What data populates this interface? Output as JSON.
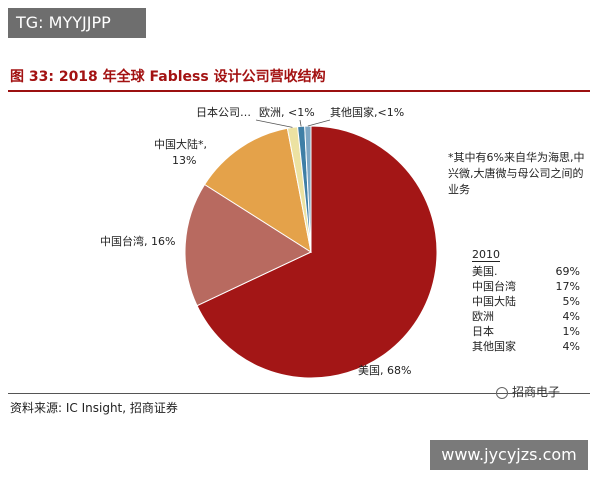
{
  "watermark": "TG: MYYJJPP",
  "figure_title": "图 33:  2018 年全球 Fabless 设计公司营收结构",
  "source": "资料来源:  IC Insight, 招商证券",
  "brand": "招商电子",
  "site": "www.jycyjzs.com",
  "note": "*其中有6%来自华为海思,中兴微,大唐微与母公司之间的业务",
  "table": {
    "header": "2010",
    "rows": [
      {
        "name": "美国.",
        "value": "69%"
      },
      {
        "name": "中国台湾",
        "value": "17%"
      },
      {
        "name": "中国大陆",
        "value": "5%"
      },
      {
        "name": "欧洲",
        "value": "4%"
      },
      {
        "name": "日本",
        "value": "1%"
      },
      {
        "name": "其他国家",
        "value": "4%"
      }
    ]
  },
  "chart_data": {
    "type": "pie",
    "title": "2018 年全球 Fabless 设计公司营收结构",
    "slices": [
      {
        "label": "美国, 68%",
        "value": 68,
        "color": "#a31616"
      },
      {
        "label": "中国台湾, 16%",
        "value": 16,
        "color": "#b86a60"
      },
      {
        "label": "中国大陆*, 13%",
        "value": 13,
        "color": "#e4a24a"
      },
      {
        "label": "日本公司…",
        "value": 1.3,
        "color": "#ece2a2"
      },
      {
        "label": "欧洲, <1%",
        "value": 0.9,
        "color": "#3f7fa6"
      },
      {
        "label": "其他国家,<1%",
        "value": 0.8,
        "color": "#7ea7c4"
      }
    ]
  }
}
